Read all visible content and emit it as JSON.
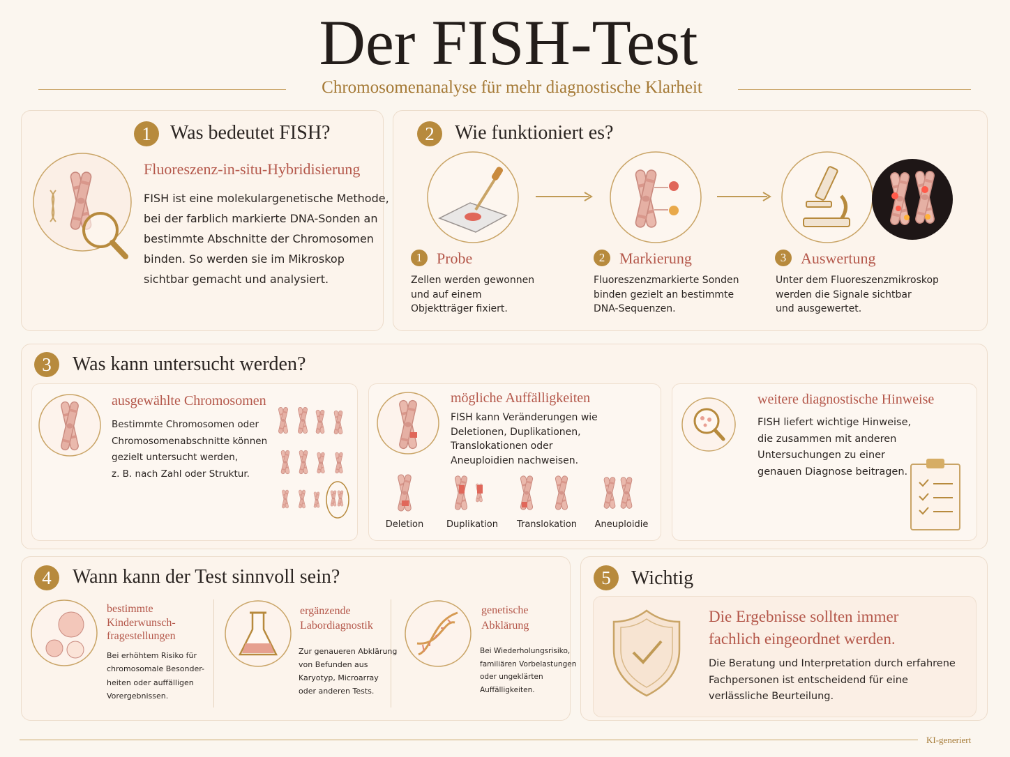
{
  "header": {
    "title": "Der FISH-Test",
    "subtitle": "Chromosomenanalyse für mehr diagnostische Klarheit"
  },
  "section1": {
    "number": 1,
    "title": "Was bedeutet FISH?",
    "subtitle": "Fluoreszenz-in-situ-Hybridisierung",
    "text": [
      "FISH ist eine molekulargenetische Methode,",
      "bei der farblich markierte DNA-Sonden an",
      "bestimmte Abschnitte der Chromosomen",
      "binden. So werden sie im Mikroskop",
      "sichtbar gemacht und analysiert."
    ]
  },
  "section2": {
    "number": 2,
    "title": "Wie funktioniert es?",
    "steps": [
      {
        "number": 1,
        "title": "Probe",
        "text": [
          "Zellen werden gewonnen",
          "und auf einem",
          "Objektträger fixiert."
        ]
      },
      {
        "number": 2,
        "title": "Markierung",
        "text": [
          "Fluoreszenzmarkierte Sonden",
          "binden gezielt an bestimmte",
          "DNA-Sequenzen."
        ]
      },
      {
        "number": 3,
        "title": "Auswertung",
        "text": [
          "Unter dem Fluoreszenzmikroskop",
          "werden die Signale sichtbar",
          "und ausgewertet."
        ]
      }
    ]
  },
  "section3": {
    "number": 3,
    "title": "Was kann untersucht werden?",
    "cards": [
      {
        "title": "ausgewählte Chromosomen",
        "text": [
          "Bestimmte Chromosomen oder",
          "Chromosomenabschnitte können",
          "gezielt untersucht werden,",
          "z. B. nach Zahl oder Struktur."
        ]
      },
      {
        "title": "mögliche Auffälligkeiten",
        "text": [
          "FISH kann Veränderungen wie",
          "Deletionen, Duplikationen,",
          "Translokationen oder",
          "Aneuploidien nachweisen."
        ],
        "examples": [
          "Deletion",
          "Duplikation",
          "Translokation",
          "Aneuploidie"
        ]
      },
      {
        "title": "weitere diagnostische Hinweise",
        "text": [
          "FISH liefert wichtige Hinweise,",
          "die zusammen mit anderen",
          "Untersuchungen zu einer",
          "genauen Diagnose beitragen."
        ]
      }
    ]
  },
  "section4": {
    "number": 4,
    "title": "Wann kann der Test sinnvoll sein?",
    "items": [
      {
        "title": [
          "bestimmte",
          "Kinderwunsch-",
          "fragestellungen"
        ],
        "text": [
          "Bei erhöhtem Risiko für",
          "chromosomale Besonder-",
          "heiten oder auffälligen",
          "Vorergebnissen."
        ]
      },
      {
        "title": [
          "ergänzende",
          "Labordiagnostik"
        ],
        "text": [
          "Zur genaueren Abklärung",
          "von Befunden aus",
          "Karyotyp, Microarray",
          "oder anderen Tests."
        ]
      },
      {
        "title": [
          "genetische",
          "Abklärung"
        ],
        "text": [
          "Bei Wiederholungsrisiko,",
          "familiären Vorbelastungen",
          "oder ungeklärten",
          "Auffälligkeiten."
        ]
      }
    ]
  },
  "section5": {
    "number": 5,
    "title": "Wichtig",
    "heading": [
      "Die Ergebnisse sollten immer",
      "fachlich eingeordnet werden."
    ],
    "text": [
      "Die Beratung und Interpretation durch erfahrene",
      "Fachpersonen ist entscheidend für eine",
      "verlässliche Beurteilung."
    ]
  },
  "footer": "KI-generiert"
}
